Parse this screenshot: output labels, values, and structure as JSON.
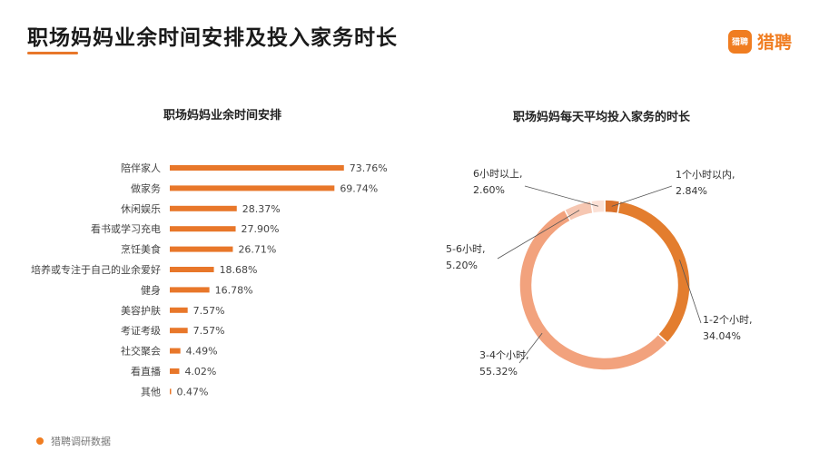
{
  "header": {
    "title": "职场妈妈业余时间安排及投入家务时长",
    "logo_mark": "猎聘",
    "logo_text": "猎聘"
  },
  "colors": {
    "accent": "#e8772a",
    "bar": "#e8772a",
    "donut": [
      "#d9712c",
      "#e37d2e",
      "#f2a27d",
      "#f6c7b2",
      "#fbe1d6"
    ]
  },
  "chart_data": [
    {
      "type": "bar",
      "orientation": "horizontal",
      "title": "职场妈妈业余时间安排",
      "categories": [
        "陪伴家人",
        "做家务",
        "休闲娱乐",
        "看书或学习充电",
        "烹饪美食",
        "培养或专注于自己的业余爱好",
        "健身",
        "美容护肤",
        "考证考级",
        "社交聚会",
        "看直播",
        "其他"
      ],
      "values": [
        73.76,
        69.74,
        28.37,
        27.9,
        26.71,
        18.68,
        16.78,
        7.57,
        7.57,
        4.49,
        4.02,
        0.47
      ],
      "value_labels": [
        "73.76%",
        "69.74%",
        "28.37%",
        "27.90%",
        "26.71%",
        "18.68%",
        "16.78%",
        "7.57%",
        "7.57%",
        "4.49%",
        "4.02%",
        "0.47%"
      ],
      "unit": "%"
    },
    {
      "type": "pie",
      "variant": "donut",
      "title": "职场妈妈每天平均投入家务的时长",
      "categories": [
        "1个小时以内,",
        "1-2个小时,",
        "3-4个小时,",
        "5-6小时,",
        "6小时以上,"
      ],
      "values": [
        2.84,
        34.04,
        55.32,
        5.2,
        2.6
      ],
      "value_labels": [
        "2.84%",
        "34.04%",
        "55.32%",
        "5.20%",
        "2.60%"
      ],
      "unit": "%"
    }
  ],
  "footer": {
    "source": "猎聘调研数据"
  }
}
